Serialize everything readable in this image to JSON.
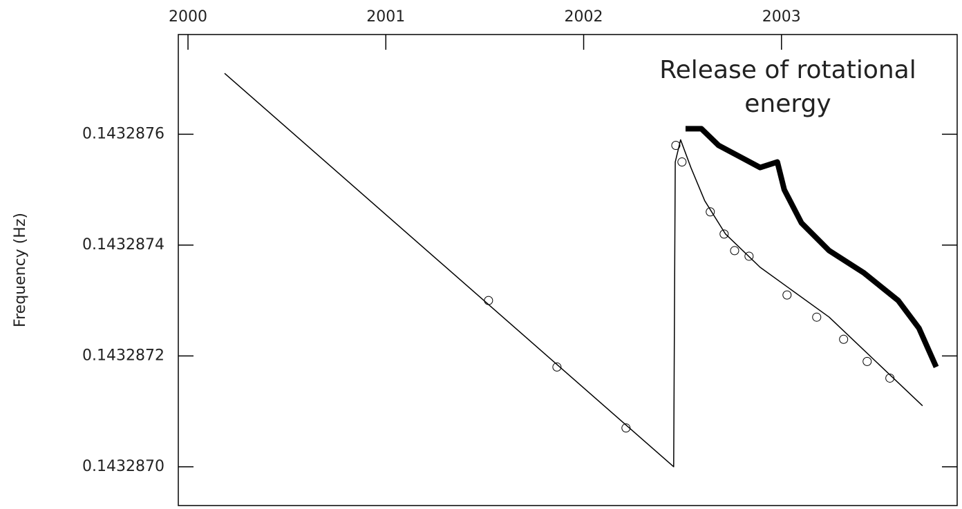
{
  "chart_data": {
    "type": "line",
    "ylabel": "Frequency (Hz)",
    "annotation": [
      "Release of rotational",
      "energy"
    ],
    "xlim": [
      1999.951,
      2003.888
    ],
    "xticks": [
      2000,
      2001,
      2002,
      2003
    ],
    "ylim": [
      0.14328693,
      0.14328778
    ],
    "yticks": [
      {
        "value": 0.143287,
        "label": "0.1432870"
      },
      0.1432872,
      0.1432874,
      0.1432876
    ],
    "series": [
      {
        "style": "line",
        "color": "#000000",
        "width": 1.5,
        "x": [
          2000.185,
          2002.455,
          2002.463,
          2002.49,
          2002.542,
          2002.612,
          2002.717,
          2002.892,
          2003.241,
          2003.713
        ],
        "values": [
          0.14328771,
          0.143287,
          0.14328755,
          0.14328759,
          0.14328754,
          0.14328748,
          0.14328742,
          0.14328736,
          0.14328727,
          0.14328711
        ]
      },
      {
        "style": "markers",
        "color": "#000000",
        "width": 1,
        "x": [
          2001.519,
          2001.865,
          2002.214,
          2002.466,
          2002.497,
          2002.64,
          2002.71,
          2002.763,
          2002.836,
          2003.028,
          2003.178,
          2003.314,
          2003.433,
          2003.548
        ],
        "values": [
          0.1432873,
          0.14328718,
          0.14328707,
          0.14328758,
          0.14328755,
          0.14328746,
          0.14328742,
          0.14328739,
          0.14328738,
          0.14328731,
          0.14328727,
          0.14328723,
          0.14328719,
          0.14328716
        ]
      },
      {
        "style": "line",
        "color": "#000000",
        "width": 8,
        "x": [
          2002.515,
          2002.595,
          2002.682,
          2002.787,
          2002.892,
          2002.979,
          2003.014,
          2003.101,
          2003.241,
          2003.416,
          2003.59,
          2003.695,
          2003.782
        ],
        "values": [
          0.14328761,
          0.14328761,
          0.14328758,
          0.14328756,
          0.14328754,
          0.14328755,
          0.1432875,
          0.14328744,
          0.14328739,
          0.14328735,
          0.1432873,
          0.14328725,
          0.14328718
        ]
      }
    ]
  }
}
